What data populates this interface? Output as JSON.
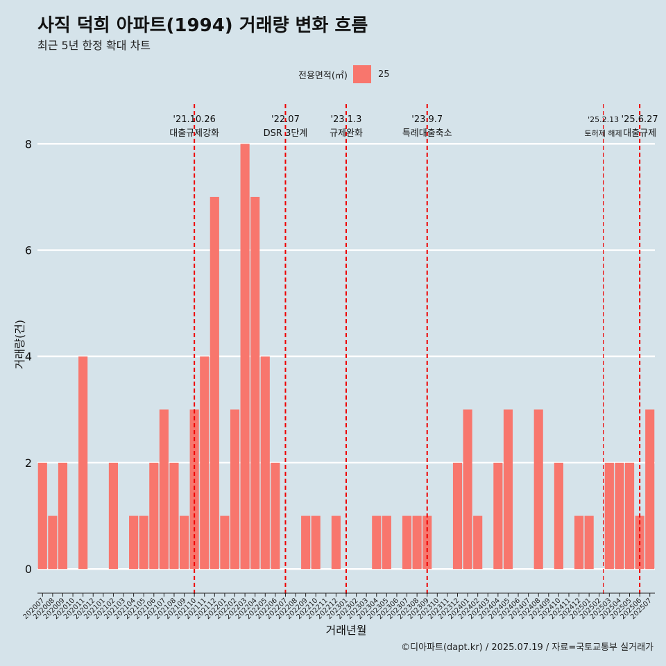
{
  "title": "사직 덕희 아파트(1994) 거래량 변화 흐름",
  "subtitle": "최근 5년 한정 확대 차트",
  "legend": {
    "title": "전용면적(㎡)",
    "items": [
      {
        "label": "25",
        "color": "#f8766d"
      }
    ]
  },
  "source": "©디아파트(dapt.kr) / 2025.07.19 / 자료=국토교통부 실거래가",
  "chart_data": {
    "type": "bar",
    "xlabel": "거래년월",
    "ylabel": "거래량(건)",
    "ylim": [
      -0.35,
      8.8
    ],
    "yticks": [
      0,
      2,
      4,
      6,
      8
    ],
    "grid": true,
    "legend_position": "top",
    "bar_color": "#f8766d",
    "categories": [
      "202007",
      "202008",
      "202009",
      "202010",
      "202011",
      "202012",
      "202101",
      "202102",
      "202103",
      "202104",
      "202105",
      "202106",
      "202107",
      "202108",
      "202109",
      "202110",
      "202111",
      "202112",
      "202201",
      "202202",
      "202203",
      "202204",
      "202205",
      "202206",
      "202207",
      "202208",
      "202209",
      "202210",
      "202211",
      "202212",
      "202301",
      "202302",
      "202303",
      "202304",
      "202305",
      "202306",
      "202307",
      "202308",
      "202309",
      "202310",
      "202311",
      "202312",
      "202401",
      "202402",
      "202403",
      "202404",
      "202405",
      "202406",
      "202407",
      "202408",
      "202409",
      "202410",
      "202411",
      "202412",
      "202501",
      "202502",
      "202503",
      "202504",
      "202505",
      "202506",
      "202507"
    ],
    "series": [
      {
        "values": [
          2,
          1,
          2,
          0,
          4,
          0,
          0,
          2,
          0,
          1,
          1,
          2,
          3,
          2,
          1,
          3,
          4,
          7,
          1,
          3,
          8,
          7,
          4,
          2,
          0,
          0,
          1,
          1,
          0,
          1,
          0,
          0,
          0,
          1,
          1,
          0,
          1,
          1,
          1,
          0,
          0,
          2,
          3,
          1,
          0,
          2,
          3,
          0,
          0,
          3,
          0,
          2,
          0,
          1,
          1,
          0,
          2,
          2,
          2,
          1,
          3
        ]
      }
    ],
    "events": [
      {
        "date": "'21.10.26",
        "label": "대출규제강화",
        "pos": 15.0
      },
      {
        "date": "'22.07",
        "label": "DSR 3단계",
        "pos": 24.0
      },
      {
        "date": "'23.1.3",
        "label": "규제완화",
        "pos": 30.0
      },
      {
        "date": "'23.9.7",
        "label": "특례대출축소",
        "pos": 38.0
      },
      {
        "date": "'25.2.13",
        "label": "토허제 해제",
        "pos": 55.4
      },
      {
        "date": "'25.6.27",
        "label": "대출규제",
        "pos": 59.0
      }
    ]
  }
}
